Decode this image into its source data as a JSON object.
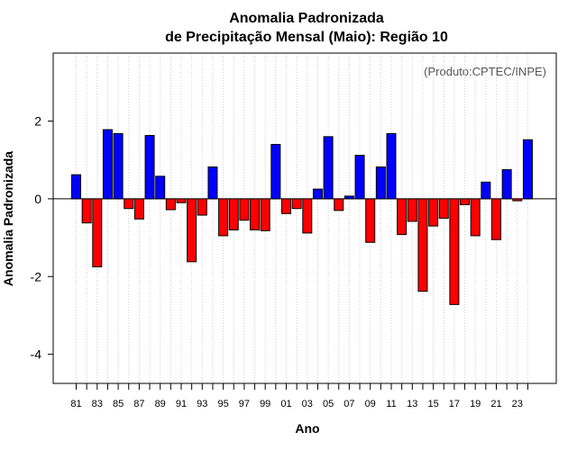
{
  "chart_data": {
    "type": "bar",
    "title": "Anomalia Padronizada",
    "subtitle": "de Precipitação Mensal (Maio): Região 10",
    "xlabel": "Ano",
    "ylabel": "Anomalia Padronizada",
    "credit": "(Produto:CPTEC/INPE)",
    "ylim": [
      -4.75,
      3.75
    ],
    "yticks": [
      -4,
      -2,
      0,
      2
    ],
    "ytick_labels": [
      "-4",
      "-2",
      "0",
      "2"
    ],
    "categories": [
      "1981",
      "1982",
      "1983",
      "1984",
      "1985",
      "1986",
      "1987",
      "1988",
      "1989",
      "1990",
      "1991",
      "1992",
      "1993",
      "1994",
      "1995",
      "1996",
      "1997",
      "1998",
      "1999",
      "2000",
      "2001",
      "2002",
      "2003",
      "2004",
      "2005",
      "2006",
      "2007",
      "2008",
      "2009",
      "2010",
      "2011",
      "2012",
      "2013",
      "2014",
      "2015",
      "2016",
      "2017",
      "2018",
      "2019",
      "2020",
      "2021",
      "2022",
      "2023",
      "2024"
    ],
    "xtick_labels": [
      "81",
      "83",
      "85",
      "87",
      "89",
      "91",
      "93",
      "95",
      "97",
      "99",
      "01",
      "03",
      "05",
      "07",
      "09",
      "11",
      "13",
      "15",
      "17",
      "19",
      "21",
      "23"
    ],
    "values": [
      0.62,
      -0.62,
      -1.75,
      1.78,
      1.68,
      -0.25,
      -0.52,
      1.63,
      0.58,
      -0.28,
      -0.1,
      -1.62,
      -0.42,
      0.82,
      -0.95,
      -0.8,
      -0.55,
      -0.8,
      -0.82,
      1.4,
      -0.38,
      -0.25,
      -0.88,
      0.25,
      1.6,
      -0.3,
      0.07,
      1.12,
      -1.12,
      0.82,
      1.68,
      -0.92,
      -0.58,
      -2.38,
      -0.7,
      -0.5,
      -2.72,
      -0.15,
      -0.95,
      0.43,
      -1.05,
      0.75,
      -0.05,
      1.52
    ],
    "positive_color": "#0000ff",
    "negative_color": "#ff0000",
    "gridlines": "vertical dotted",
    "legend": "none"
  }
}
